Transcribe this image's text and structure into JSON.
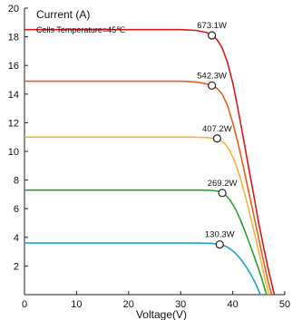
{
  "chart_data": {
    "type": "line",
    "title": "",
    "ylabel": "Current (A)",
    "xlabel": "Voltage(V)",
    "annotation": "Cells Temperature=45℃",
    "xlim": [
      0,
      50
    ],
    "ylim": [
      0,
      20
    ],
    "x_ticks": [
      0,
      10,
      20,
      30,
      40,
      50
    ],
    "y_ticks": [
      2,
      4,
      6,
      8,
      10,
      12,
      14,
      16,
      18,
      20
    ],
    "grid": false,
    "series": [
      {
        "name": "673.1W",
        "color": "#d7191c",
        "points": [
          [
            0,
            18.5
          ],
          [
            30,
            18.5
          ],
          [
            33,
            18.45
          ],
          [
            35,
            18.3
          ],
          [
            36,
            18.1
          ],
          [
            37,
            17.8
          ],
          [
            38,
            17.2
          ],
          [
            39,
            16.2
          ],
          [
            40,
            14.8
          ],
          [
            41,
            13.0
          ],
          [
            42,
            11.0
          ],
          [
            43,
            9.0
          ],
          [
            44,
            7.0
          ],
          [
            45,
            5.0
          ],
          [
            46,
            3.2
          ],
          [
            47,
            1.5
          ],
          [
            48,
            0
          ]
        ],
        "mpp": [
          36,
          18.1
        ]
      },
      {
        "name": "542.3W",
        "color": "#e8601c",
        "points": [
          [
            0,
            14.9
          ],
          [
            30,
            14.9
          ],
          [
            33,
            14.85
          ],
          [
            35,
            14.7
          ],
          [
            36,
            14.6
          ],
          [
            37,
            14.4
          ],
          [
            38,
            14.0
          ],
          [
            39,
            13.2
          ],
          [
            40,
            12.0
          ],
          [
            41,
            10.6
          ],
          [
            42,
            9.0
          ],
          [
            43,
            7.3
          ],
          [
            44,
            5.6
          ],
          [
            45,
            3.9
          ],
          [
            46,
            2.2
          ],
          [
            47,
            0.6
          ],
          [
            47.5,
            0
          ]
        ],
        "mpp": [
          36,
          14.6
        ]
      },
      {
        "name": "407.2W",
        "color": "#f5b342",
        "points": [
          [
            0,
            11.0
          ],
          [
            32,
            11.0
          ],
          [
            35,
            10.97
          ],
          [
            36.5,
            10.9
          ],
          [
            37.5,
            10.8
          ],
          [
            38.5,
            10.55
          ],
          [
            39.5,
            10.0
          ],
          [
            40.5,
            9.2
          ],
          [
            41.5,
            8.1
          ],
          [
            42.5,
            6.8
          ],
          [
            43.5,
            5.3
          ],
          [
            44.5,
            3.8
          ],
          [
            45.5,
            2.2
          ],
          [
            46.5,
            0.6
          ],
          [
            47,
            0
          ]
        ],
        "mpp": [
          37,
          10.9
        ]
      },
      {
        "name": "269.2W",
        "color": "#2ca02c",
        "points": [
          [
            0,
            7.3
          ],
          [
            34,
            7.3
          ],
          [
            36,
            7.28
          ],
          [
            37.5,
            7.2
          ],
          [
            38.5,
            7.0
          ],
          [
            39.5,
            6.6
          ],
          [
            40.5,
            6.0
          ],
          [
            41.5,
            5.2
          ],
          [
            42.5,
            4.3
          ],
          [
            43.5,
            3.3
          ],
          [
            44.5,
            2.3
          ],
          [
            45.5,
            1.2
          ],
          [
            46.5,
            0
          ]
        ],
        "mpp": [
          38,
          7.1
        ]
      },
      {
        "name": "130.3W",
        "color": "#1f9fd9",
        "points": [
          [
            0,
            3.6
          ],
          [
            33,
            3.6
          ],
          [
            36,
            3.58
          ],
          [
            37.5,
            3.5
          ],
          [
            38.5,
            3.4
          ],
          [
            39.5,
            3.2
          ],
          [
            40.5,
            2.9
          ],
          [
            41.5,
            2.5
          ],
          [
            42.5,
            2.0
          ],
          [
            43.5,
            1.4
          ],
          [
            44.5,
            0.7
          ],
          [
            45.3,
            0
          ]
        ],
        "mpp": [
          37.5,
          3.5
        ]
      }
    ]
  }
}
